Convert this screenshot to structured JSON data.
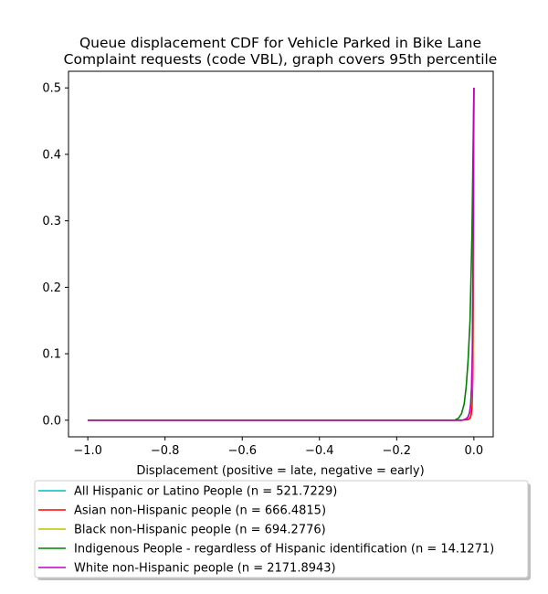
{
  "chart_data": {
    "type": "line",
    "title": [
      "Queue displacement CDF for Vehicle Parked in Bike Lane",
      "Complaint  requests (code VBL), graph covers 95th percentile"
    ],
    "xlabel": "Displacement (positive = late, negative = early)",
    "ylabel": "",
    "xlim": [
      -1.05,
      0.05
    ],
    "ylim": [
      -0.025,
      0.525
    ],
    "xticks": [
      -1.0,
      -0.8,
      -0.6,
      -0.4,
      -0.2,
      0.0
    ],
    "xtick_labels": [
      "−1.0",
      "−0.8",
      "−0.6",
      "−0.4",
      "−0.2",
      "0.0"
    ],
    "yticks": [
      0.0,
      0.1,
      0.2,
      0.3,
      0.4,
      0.5
    ],
    "ytick_labels": [
      "0.0",
      "0.1",
      "0.2",
      "0.3",
      "0.4",
      "0.5"
    ],
    "grid": false,
    "legend_position": "below",
    "series": [
      {
        "name": "All Hispanic or Latino People (n = 521.7229)",
        "color": "#00bfbf",
        "x": [
          -1.0,
          -0.1,
          -0.03,
          -0.02,
          -0.015,
          -0.012,
          -0.009,
          -0.006,
          -0.004,
          -0.002,
          0.0
        ],
        "y": [
          0.0,
          0.0,
          0.0,
          0.002,
          0.005,
          0.01,
          0.02,
          0.05,
          0.1,
          0.25,
          0.5
        ]
      },
      {
        "name": "Asian non-Hispanic people (n = 666.4815)",
        "color": "#ff0000",
        "x": [
          -1.0,
          -0.1,
          -0.03,
          -0.015,
          -0.01,
          -0.007,
          -0.005,
          -0.003,
          -0.002,
          -0.001,
          0.0
        ],
        "y": [
          0.0,
          0.0,
          0.0,
          0.001,
          0.003,
          0.008,
          0.02,
          0.06,
          0.12,
          0.25,
          0.5
        ]
      },
      {
        "name": "Black non-Hispanic people (n = 694.2776)",
        "color": "#bfbf00",
        "x": [
          -1.0,
          -0.1,
          -0.03,
          -0.02,
          -0.014,
          -0.01,
          -0.007,
          -0.005,
          -0.003,
          -0.0015,
          0.0
        ],
        "y": [
          0.0,
          0.0,
          0.0,
          0.002,
          0.006,
          0.012,
          0.025,
          0.05,
          0.11,
          0.25,
          0.5
        ]
      },
      {
        "name": "Indigenous People - regardless of Hispanic identification (n = 14.1271)",
        "color": "#008000",
        "x": [
          -1.0,
          -0.1,
          -0.05,
          -0.04,
          -0.032,
          -0.025,
          -0.02,
          -0.015,
          -0.01,
          -0.005,
          0.0
        ],
        "y": [
          0.0,
          0.0,
          0.0,
          0.003,
          0.01,
          0.025,
          0.05,
          0.09,
          0.15,
          0.28,
          0.5
        ]
      },
      {
        "name": "White non-Hispanic people (n = 2171.8943)",
        "color": "#bf00bf",
        "x": [
          -1.0,
          -0.1,
          -0.03,
          -0.02,
          -0.015,
          -0.011,
          -0.008,
          -0.006,
          -0.004,
          -0.002,
          0.0
        ],
        "y": [
          0.0,
          0.0,
          0.0,
          0.002,
          0.005,
          0.012,
          0.025,
          0.05,
          0.1,
          0.25,
          0.5
        ]
      }
    ]
  }
}
